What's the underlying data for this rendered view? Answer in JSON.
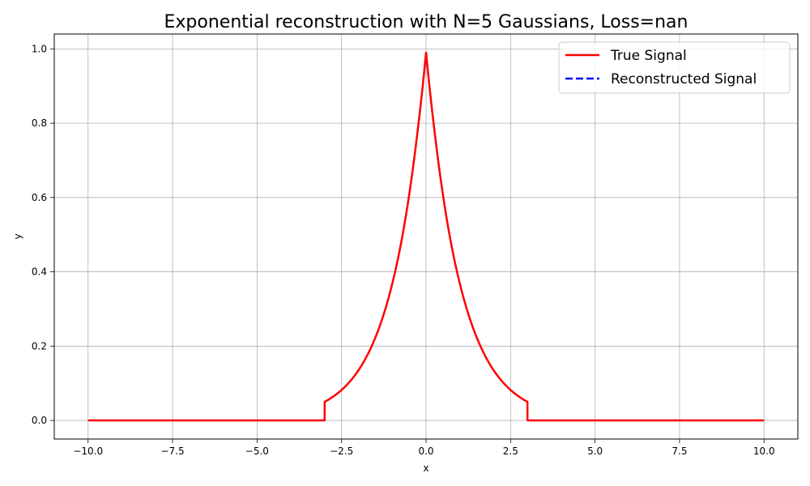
{
  "chart_data": {
    "type": "line",
    "title": "Exponential reconstruction with N=5 Gaussians, Loss=nan",
    "xlabel": "x",
    "ylabel": "y",
    "xlim": [
      -11,
      11
    ],
    "ylim": [
      -0.05,
      1.04
    ],
    "xticks": [
      -10,
      -7.5,
      -5,
      -2.5,
      0,
      2.5,
      5,
      7.5,
      10
    ],
    "xtick_labels": [
      "−10.0",
      "−7.5",
      "−5.0",
      "−2.5",
      "0.0",
      "2.5",
      "5.0",
      "7.5",
      "10.0"
    ],
    "yticks": [
      0,
      0.2,
      0.4,
      0.6,
      0.8,
      1.0
    ],
    "ytick_labels": [
      "0.0",
      "0.2",
      "0.4",
      "0.6",
      "0.8",
      "1.0"
    ],
    "grid": true,
    "legend_position": "top-right",
    "series": [
      {
        "name": "True Signal",
        "color": "#ff0000",
        "style": "solid",
        "x": [
          -10,
          -3.0,
          -3.0,
          -2.5,
          -2.0,
          -1.5,
          -1.0,
          -0.75,
          -0.5,
          -0.25,
          0.0,
          0.25,
          0.5,
          0.75,
          1.0,
          1.5,
          2.0,
          2.5,
          3.0,
          3.0,
          10
        ],
        "y": [
          0,
          0,
          0.05,
          0.082,
          0.135,
          0.223,
          0.368,
          0.472,
          0.607,
          0.779,
          0.99,
          0.779,
          0.607,
          0.472,
          0.368,
          0.223,
          0.135,
          0.082,
          0.05,
          0,
          0
        ]
      },
      {
        "name": "Reconstructed Signal",
        "color": "#0000ff",
        "style": "dashed",
        "x": [],
        "y": []
      }
    ]
  }
}
